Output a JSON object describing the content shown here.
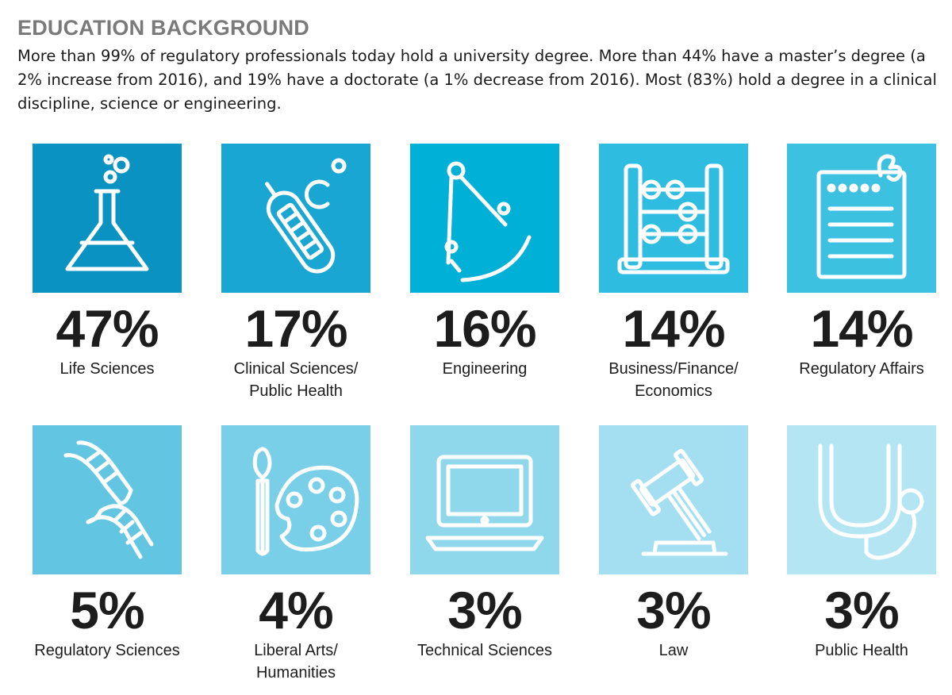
{
  "heading": "EDUCATION BACKGROUND",
  "intro": "More than 99% of regulatory professionals today hold a university degree. More than 44% have a master’s degree (a 2% increase from 2016), and 19% have a doctorate (a 1% decrease from 2016). Most (83%) hold a degree in a clinical discipline, science or engineering.",
  "chart_data": {
    "type": "table",
    "unit": "%",
    "categories": [
      "Life Sciences",
      "Clinical Sciences/ Public Health",
      "Engineering",
      "Business/Finance/ Economics",
      "Regulatory Affairs",
      "Regulatory Sciences",
      "Liberal Arts/ Humanities",
      "Technical Sciences",
      "Law",
      "Public Health"
    ],
    "values": [
      47,
      17,
      16,
      14,
      14,
      5,
      4,
      3,
      3,
      3
    ]
  },
  "tiles": [
    {
      "percent": "47%",
      "label": "Life Sciences",
      "icon": "flask-icon",
      "color": "#0a93c2"
    },
    {
      "percent": "17%",
      "label": "Clinical Sciences/\nPublic Health",
      "icon": "thermometer-icon",
      "color": "#1aa6d3"
    },
    {
      "percent": "16%",
      "label": "Engineering",
      "icon": "compass-icon",
      "color": "#00b0d6"
    },
    {
      "percent": "14%",
      "label": "Business/Finance/\nEconomics",
      "icon": "abacus-icon",
      "color": "#2ebde0"
    },
    {
      "percent": "14%",
      "label": "Regulatory Affairs",
      "icon": "notepad-icon",
      "color": "#3cc1e0"
    },
    {
      "percent": "5%",
      "label": "Regulatory Sciences",
      "icon": "dna-icon",
      "color": "#62c6e3"
    },
    {
      "percent": "4%",
      "label": "Liberal Arts/\nHumanities",
      "icon": "palette-icon",
      "color": "#78cfe7"
    },
    {
      "percent": "3%",
      "label": "Technical Sciences",
      "icon": "laptop-icon",
      "color": "#8fd8ec"
    },
    {
      "percent": "3%",
      "label": "Law",
      "icon": "gavel-icon",
      "color": "#a3dff0"
    },
    {
      "percent": "3%",
      "label": "Public Health",
      "icon": "stethoscope-icon",
      "color": "#b4e5f3"
    }
  ]
}
